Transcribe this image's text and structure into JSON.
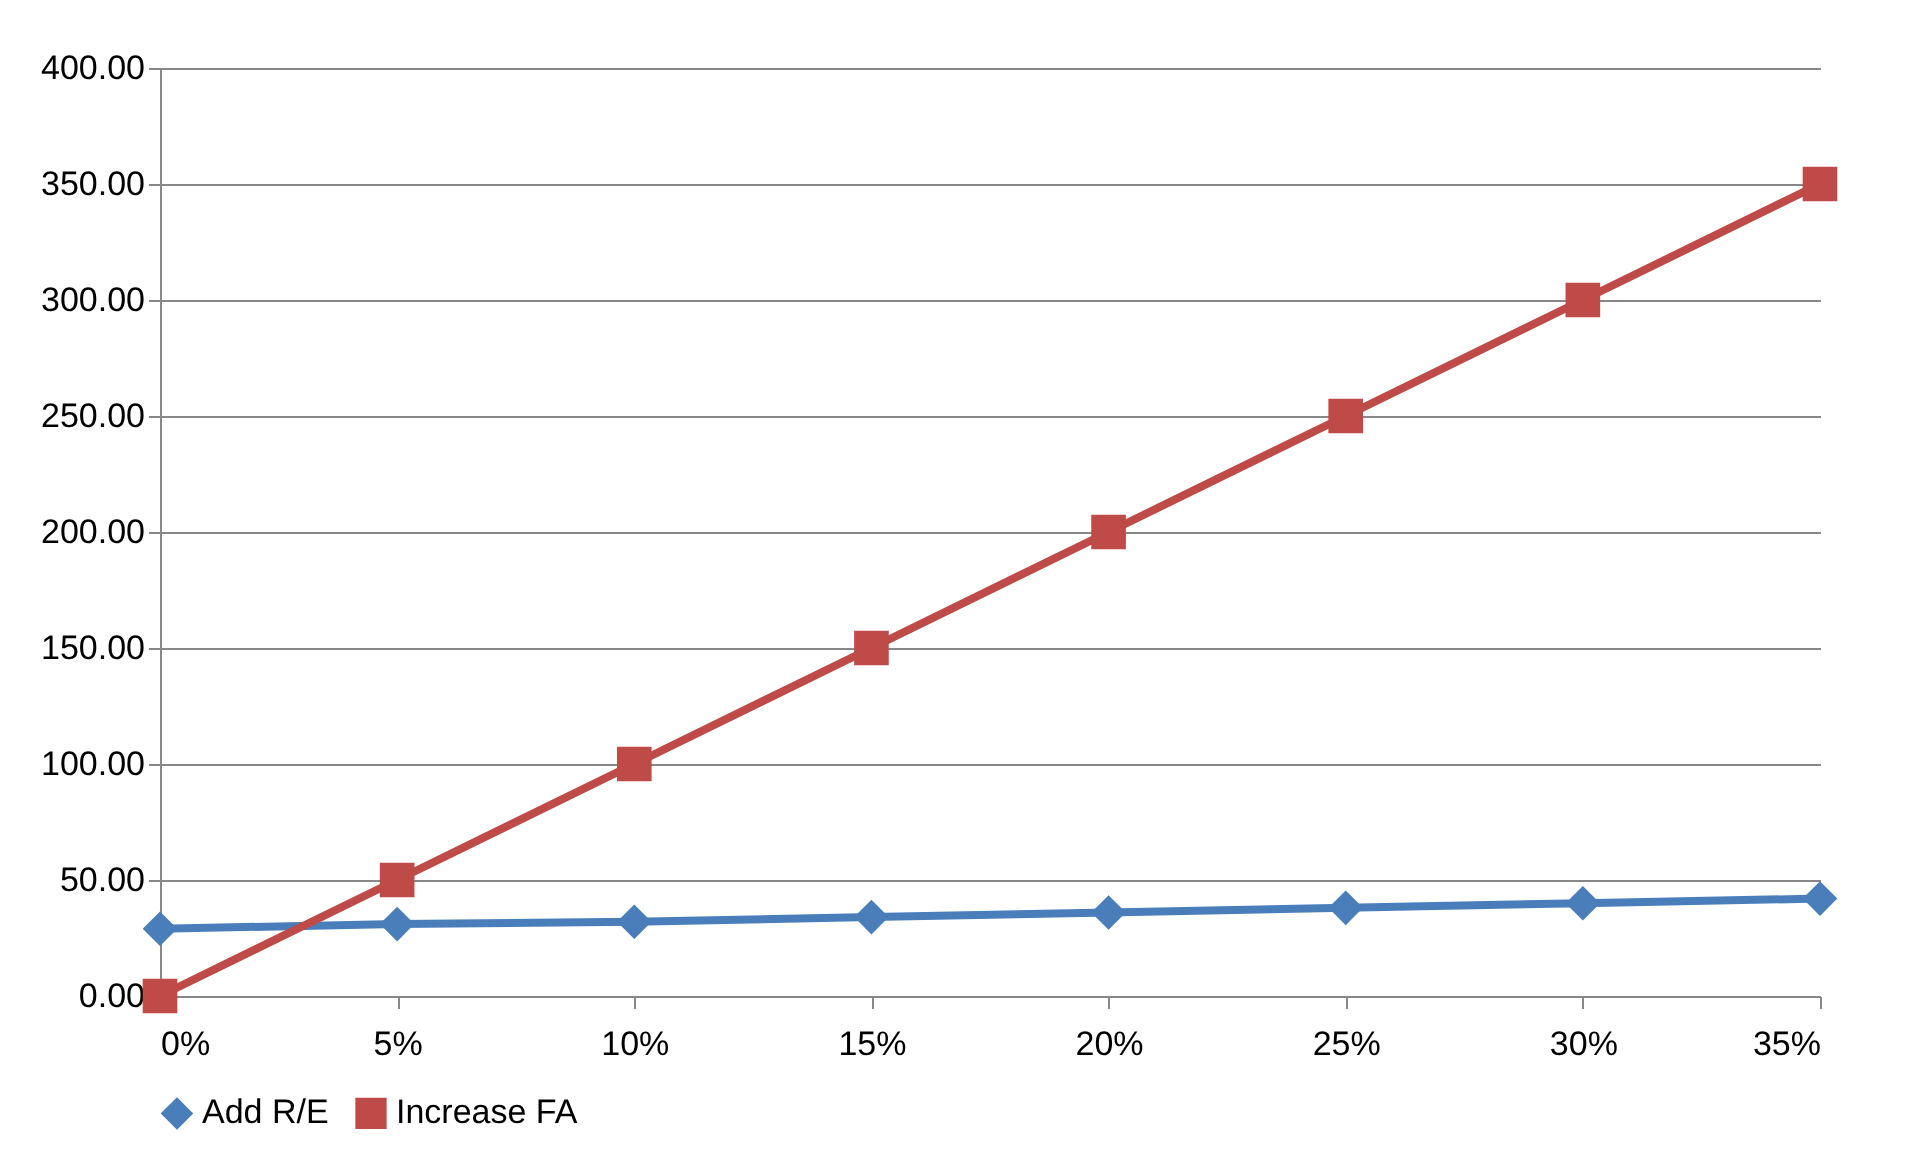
{
  "chart_data": {
    "type": "line",
    "categories": [
      "0%",
      "5%",
      "10%",
      "15%",
      "20%",
      "25%",
      "30%",
      "35%"
    ],
    "series": [
      {
        "name": "Add R/E",
        "color": "#4a7ebb",
        "marker": "diamond",
        "values": [
          29,
          31,
          32,
          34,
          36,
          38,
          40,
          42
        ]
      },
      {
        "name": "Increase FA",
        "color": "#be4b48",
        "marker": "square",
        "values": [
          0,
          50,
          100,
          150,
          200,
          250,
          300,
          350
        ]
      }
    ],
    "ylim": [
      0,
      400
    ],
    "yticks": [
      {
        "value": 0,
        "label": "0.00"
      },
      {
        "value": 50,
        "label": "50.00"
      },
      {
        "value": 100,
        "label": "100.00"
      },
      {
        "value": 150,
        "label": "150.00"
      },
      {
        "value": 200,
        "label": "200.00"
      },
      {
        "value": 250,
        "label": "250.00"
      },
      {
        "value": 300,
        "label": "300.00"
      },
      {
        "value": 350,
        "label": "350.00"
      },
      {
        "value": 400,
        "label": "400.00"
      }
    ],
    "grid": "y",
    "legend": "bottom",
    "line_style": "solid"
  }
}
